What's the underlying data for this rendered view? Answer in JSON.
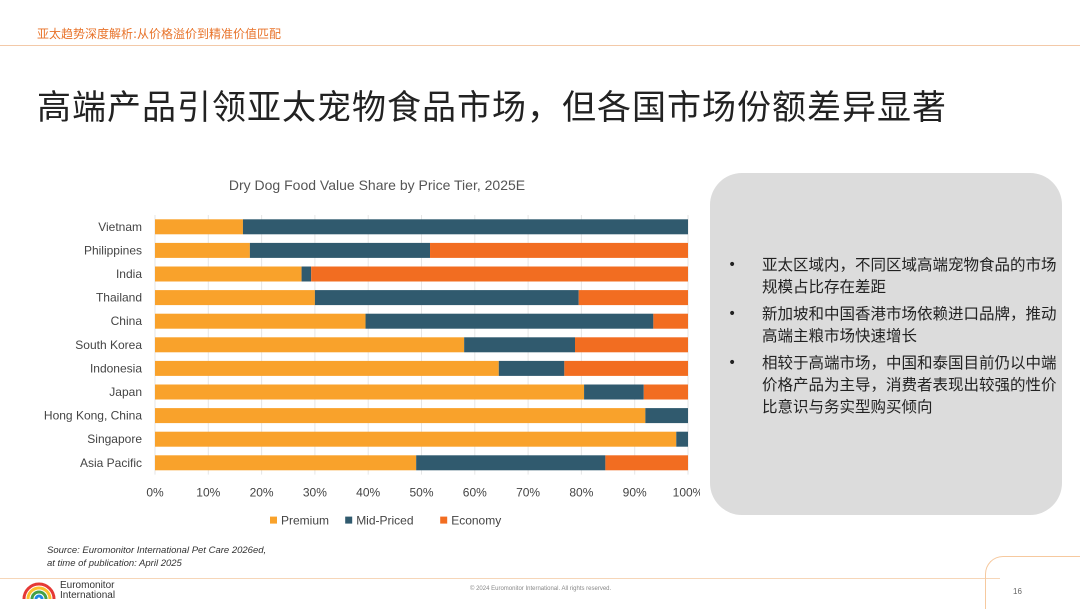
{
  "header": {
    "tag": "亚太趋势深度解析:从价格溢价到精准价值匹配"
  },
  "slide": {
    "title": "高端产品引领亚太宠物食品市场，但各国市场份额差异显著"
  },
  "colors": {
    "premium": "#f9a22b",
    "mid": "#305a6e",
    "economy": "#f26d21",
    "accent": "#e8732a"
  },
  "chart_data": {
    "type": "bar",
    "orientation": "horizontal",
    "stacked": true,
    "percent": true,
    "title": "Dry Dog Food Value Share by Price Tier, 2025E",
    "categories": [
      "Vietnam",
      "Philippines",
      "India",
      "Thailand",
      "China",
      "South Korea",
      "Indonesia",
      "Japan",
      "Hong Kong, China",
      "Singapore",
      "Asia Pacific"
    ],
    "series": [
      {
        "name": "Premium",
        "values": [
          16.5,
          17.8,
          27.5,
          30.0,
          39.5,
          58.0,
          64.5,
          80.5,
          92.0,
          97.8,
          49.0
        ]
      },
      {
        "name": "Mid-Priced",
        "values": [
          83.5,
          33.8,
          1.8,
          49.5,
          54.0,
          20.8,
          12.3,
          11.2,
          8.0,
          2.2,
          35.5
        ]
      },
      {
        "name": "Economy",
        "values": [
          0.0,
          48.4,
          70.7,
          20.5,
          6.5,
          21.2,
          23.2,
          8.3,
          0.0,
          0.0,
          15.5
        ]
      }
    ],
    "xlim": [
      0,
      100
    ],
    "xticks": [
      "0%",
      "10%",
      "20%",
      "30%",
      "40%",
      "50%",
      "60%",
      "70%",
      "80%",
      "90%",
      "100%"
    ],
    "legend": "bottom"
  },
  "callout": {
    "bullets": [
      "亚太区域内，不同区域高端宠物食品的市场规模占比存在差距",
      "新加坡和中国香港市场依赖进口品牌，推动高端主粮市场快速增长",
      "相较于高端市场，中国和泰国目前仍以中端价格产品为主导，消费者表现出较强的性价比意识与务实型购买倾向"
    ]
  },
  "source": {
    "line1": "Source: Euromonitor International Pet Care 2026ed,",
    "line2": "at time of publication: April 2025"
  },
  "footer": {
    "logo_line1": "Euromonitor",
    "logo_line2": "International",
    "copyright": "© 2024 Euromonitor International. All rights reserved.",
    "page_number": "16"
  }
}
